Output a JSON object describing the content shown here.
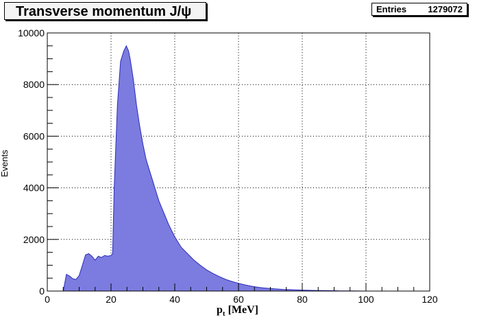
{
  "title": "Transverse momentum J/ψ",
  "stats": {
    "label": "Entries",
    "value": "1279072"
  },
  "colors": {
    "fill": "#7b7be0",
    "line": "#2b2bb8"
  },
  "chart_data": {
    "type": "area",
    "title": "Transverse momentum J/ψ",
    "xlabel": "p_t [MeV]",
    "xlabel_main": "p",
    "xlabel_sub": "t",
    "xlabel_unit": "[MeV]",
    "ylabel": "Events",
    "xlim": [
      0,
      120
    ],
    "ylim": [
      0,
      10000
    ],
    "xticks": [
      0,
      20,
      40,
      60,
      80,
      100,
      120
    ],
    "yticks": [
      0,
      2000,
      4000,
      6000,
      8000,
      10000
    ],
    "grid": true,
    "x": [
      5,
      6,
      7,
      8,
      9,
      10,
      11,
      12,
      13,
      14,
      15,
      16,
      17,
      18,
      19,
      20,
      20.5,
      21,
      22,
      23,
      24,
      24.8,
      25.5,
      26,
      27,
      28,
      29,
      30,
      31,
      32,
      33,
      34,
      35,
      36,
      37,
      38,
      39,
      40,
      42,
      44,
      46,
      48,
      50,
      52,
      54,
      56,
      58,
      60,
      62,
      64,
      66,
      68,
      70,
      72,
      74,
      76,
      78,
      80,
      82,
      84,
      86,
      88,
      90,
      92,
      95,
      100
    ],
    "values": [
      0,
      650,
      580,
      480,
      450,
      600,
      1000,
      1400,
      1450,
      1350,
      1200,
      1350,
      1300,
      1380,
      1350,
      1380,
      1450,
      4000,
      7200,
      8900,
      9300,
      9500,
      9300,
      9000,
      8200,
      7200,
      6400,
      5700,
      5100,
      4700,
      4300,
      3900,
      3500,
      3200,
      2900,
      2600,
      2350,
      2100,
      1700,
      1450,
      1200,
      1000,
      820,
      680,
      560,
      450,
      370,
      300,
      240,
      190,
      150,
      120,
      100,
      80,
      65,
      55,
      45,
      38,
      30,
      25,
      20,
      15,
      12,
      8,
      5,
      0
    ]
  }
}
